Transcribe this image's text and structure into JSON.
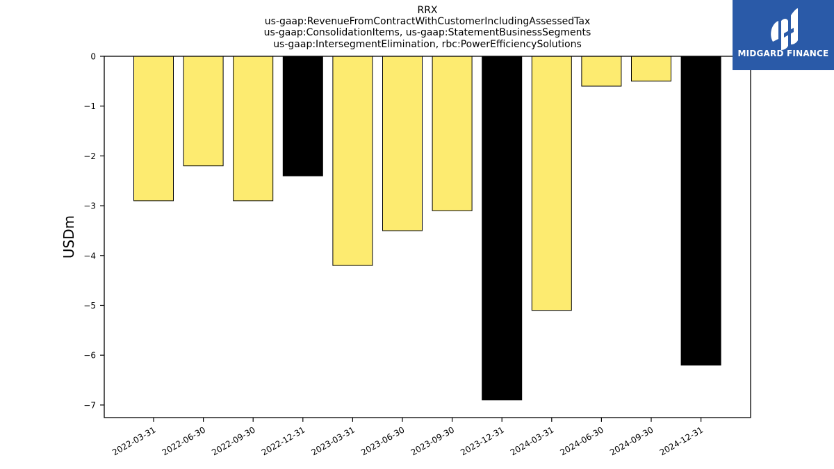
{
  "chart_data": {
    "type": "bar",
    "title_lines": [
      "RRX",
      "us-gaap:RevenueFromContractWithCustomerIncludingAssessedTax",
      "us-gaap:ConsolidationItems, us-gaap:StatementBusinessSegments",
      "us-gaap:IntersegmentElimination, rbc:PowerEfficiencySolutions"
    ],
    "ylabel": "USDm",
    "xlabel": "",
    "categories": [
      "2022-03-31",
      "2022-06-30",
      "2022-09-30",
      "2022-12-31",
      "2023-03-31",
      "2023-06-30",
      "2023-09-30",
      "2023-12-31",
      "2024-03-31",
      "2024-06-30",
      "2024-09-30",
      "2024-12-31"
    ],
    "values": [
      -2.9,
      -2.2,
      -2.9,
      -2.4,
      -4.2,
      -3.5,
      -3.1,
      -6.9,
      -5.1,
      -0.6,
      -0.5,
      -6.2
    ],
    "bar_colors": [
      "#fdeb70",
      "#fdeb70",
      "#fdeb70",
      "#000000",
      "#fdeb70",
      "#fdeb70",
      "#fdeb70",
      "#000000",
      "#fdeb70",
      "#fdeb70",
      "#fdeb70",
      "#000000"
    ],
    "yticks": [
      0,
      -1,
      -2,
      -3,
      -4,
      -5,
      -6,
      -7
    ],
    "ytick_labels": [
      "0",
      "−1",
      "−2",
      "−3",
      "−4",
      "−5",
      "−6",
      "−7"
    ],
    "ylim": [
      -7.25,
      0
    ],
    "grid": false,
    "legend": "none"
  },
  "logo": {
    "text": "MIDGARD FINANCE",
    "bg_color": "#2a5aa8"
  }
}
